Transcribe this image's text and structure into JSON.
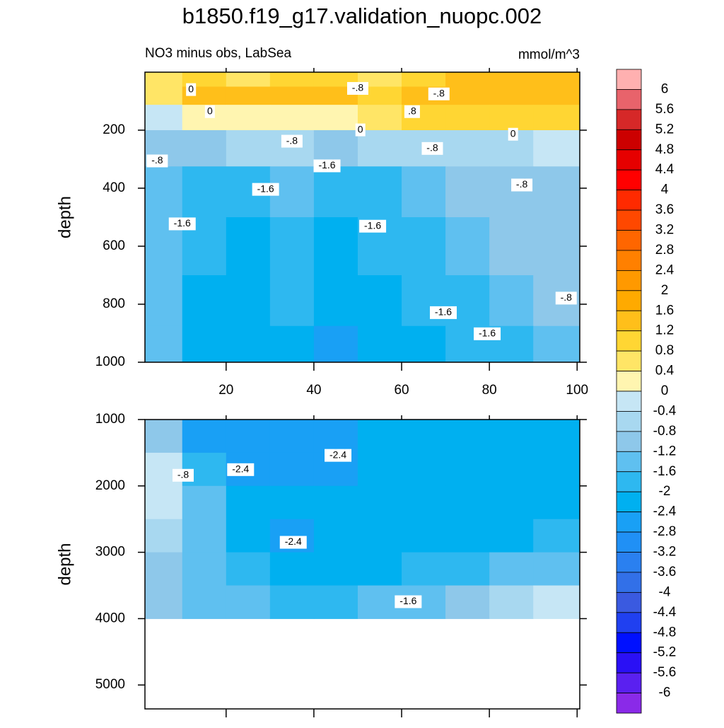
{
  "chart_data": {
    "type": "contour",
    "title": "b1850.f19_g17.validation_nuopc.002",
    "subtitle": "NO3 minus obs, LabSea",
    "units": "mmol/m^3",
    "colorbar": {
      "levels": [
        6,
        5.6,
        5.2,
        4.8,
        4.4,
        4,
        3.6,
        3.2,
        2.8,
        2.4,
        2,
        1.6,
        1.2,
        0.8,
        0.4,
        0,
        -0.4,
        -0.8,
        -1.2,
        -1.6,
        -2,
        -2.4,
        -2.8,
        -3.2,
        -3.6,
        -4,
        -4.4,
        -4.8,
        -5.2,
        -5.6,
        -6
      ],
      "colors": [
        "#ffb0b0",
        "#e8636b",
        "#d62828",
        "#cc0000",
        "#e60000",
        "#ff0000",
        "#ff2a00",
        "#ff4800",
        "#ff6600",
        "#ff8000",
        "#ff9900",
        "#ffaa00",
        "#ffbf1a",
        "#ffd633",
        "#ffe566",
        "#fff5b0",
        "#c6e6f5",
        "#a8d8f0",
        "#8ec8ea",
        "#5fc0f0",
        "#2eb8f0",
        "#00b0f0",
        "#19a0f5",
        "#2090f5",
        "#2a80f0",
        "#3270e8",
        "#3a5ae0",
        "#2040f0",
        "#0010ff",
        "#2a10f5",
        "#5a20f0",
        "#8a2ae8"
      ]
    },
    "panels": [
      {
        "ylabel": "depth",
        "yreverse": true,
        "xlim": [
          1.5,
          100.6
        ],
        "ylim": [
          0,
          1000
        ],
        "xticks": [
          20,
          40,
          60,
          80,
          100
        ],
        "show_xtick_labels": true,
        "yticks": [
          200,
          400,
          600,
          800,
          1000
        ],
        "x": [
          5,
          15,
          25,
          35,
          45,
          55,
          65,
          75,
          85,
          95
        ],
        "y": [
          25,
          75,
          150,
          250,
          400,
          600,
          800,
          950
        ],
        "values": [
          [
            0.4,
            0.8,
            0.4,
            0.8,
            0.8,
            0.4,
            0.8,
            1.2,
            1.2,
            1.2
          ],
          [
            0.4,
            1.2,
            1.2,
            1.2,
            1.2,
            0.8,
            1.2,
            1.4,
            1.4,
            1.2
          ],
          [
            -0.4,
            0.2,
            0.2,
            0.2,
            0.2,
            0.6,
            0.8,
            1.0,
            1.0,
            0.8
          ],
          [
            -1.0,
            -1.0,
            -0.6,
            -0.7,
            -1.0,
            -0.6,
            -0.5,
            -0.5,
            -0.5,
            -0.3
          ],
          [
            -1.4,
            -1.7,
            -1.7,
            -1.5,
            -1.7,
            -1.9,
            -1.5,
            -1.0,
            -0.9,
            -1.0
          ],
          [
            -1.4,
            -2.0,
            -2.1,
            -2.0,
            -2.1,
            -2.0,
            -1.8,
            -1.3,
            -1.1,
            -1.2
          ],
          [
            -1.4,
            -2.1,
            -2.1,
            -2.0,
            -2.2,
            -2.1,
            -2.0,
            -1.7,
            -1.4,
            -1.2
          ],
          [
            -1.4,
            -2.2,
            -2.2,
            -2.2,
            -2.5,
            -2.3,
            -2.1,
            -1.9,
            -1.8,
            -1.5
          ]
        ],
        "annotations": [
          {
            "label": "0",
            "x": 12,
            "y": 60
          },
          {
            "label": "-.8",
            "x": 50,
            "y": 56
          },
          {
            "label": "-.8",
            "x": 68.5,
            "y": 75
          },
          {
            "label": "0",
            "x": 16.3,
            "y": 136
          },
          {
            "label": ".8",
            "x": 62.4,
            "y": 136
          },
          {
            "label": "0",
            "x": 50.6,
            "y": 199
          },
          {
            "label": "0",
            "x": 85.4,
            "y": 214
          },
          {
            "label": "-.8",
            "x": 35,
            "y": 238
          },
          {
            "label": "-.8",
            "x": 67,
            "y": 263
          },
          {
            "label": "-.8",
            "x": 4.3,
            "y": 306
          },
          {
            "label": "-1.6",
            "x": 43,
            "y": 323
          },
          {
            "label": "-1.6",
            "x": 29,
            "y": 404
          },
          {
            "label": "-.8",
            "x": 87.4,
            "y": 389
          },
          {
            "label": "-1.6",
            "x": 10,
            "y": 523
          },
          {
            "label": "-1.6",
            "x": 53.4,
            "y": 531
          },
          {
            "label": "-1.6",
            "x": 69.5,
            "y": 829
          },
          {
            "label": "-1.6",
            "x": 79.5,
            "y": 902
          },
          {
            "label": "-.8",
            "x": 97.5,
            "y": 779
          }
        ]
      },
      {
        "ylabel": "depth",
        "yreverse": true,
        "xlim": [
          1.5,
          100.6
        ],
        "ylim": [
          1000,
          5360
        ],
        "xticks": [
          20,
          40,
          60,
          80,
          100
        ],
        "show_xtick_labels": false,
        "yticks": [
          1000,
          2000,
          3000,
          4000,
          5000
        ],
        "x": [
          5,
          15,
          25,
          35,
          45,
          55,
          65,
          75,
          85,
          95
        ],
        "y": [
          1250,
          1750,
          2250,
          2750,
          3250,
          3750
        ],
        "values": [
          [
            -1.0,
            -2.5,
            -2.6,
            -2.5,
            -2.6,
            -2.3,
            -2.4,
            -2.3,
            -2.2,
            -2.1
          ],
          [
            -0.4,
            -1.7,
            -2.5,
            -2.5,
            -2.5,
            -2.3,
            -2.3,
            -2.2,
            -2.1,
            -2.1
          ],
          [
            -0.4,
            -1.3,
            -2.2,
            -2.3,
            -2.2,
            -2.2,
            -2.2,
            -2.1,
            -2.1,
            -2.1
          ],
          [
            -0.8,
            -1.4,
            -2.2,
            -2.5,
            -2.3,
            -2.2,
            -2.2,
            -2.1,
            -2.1,
            -2.0
          ],
          [
            -1.0,
            -1.5,
            -1.8,
            -2.1,
            -2.1,
            -2.1,
            -2.0,
            -1.9,
            -1.6,
            -1.3
          ],
          [
            -1.2,
            -1.4,
            -1.5,
            -1.7,
            -1.7,
            -1.6,
            -1.4,
            -1.2,
            -0.8,
            -0.4
          ]
        ],
        "annotations": [
          {
            "label": "-.8",
            "x": 10.2,
            "y": 1840
          },
          {
            "label": "-2.4",
            "x": 23.3,
            "y": 1755
          },
          {
            "label": "-2.4",
            "x": 45.5,
            "y": 1540
          },
          {
            "label": "-2.4",
            "x": 35.3,
            "y": 2850
          },
          {
            "label": "-1.6",
            "x": 61.5,
            "y": 3745
          }
        ]
      }
    ]
  }
}
